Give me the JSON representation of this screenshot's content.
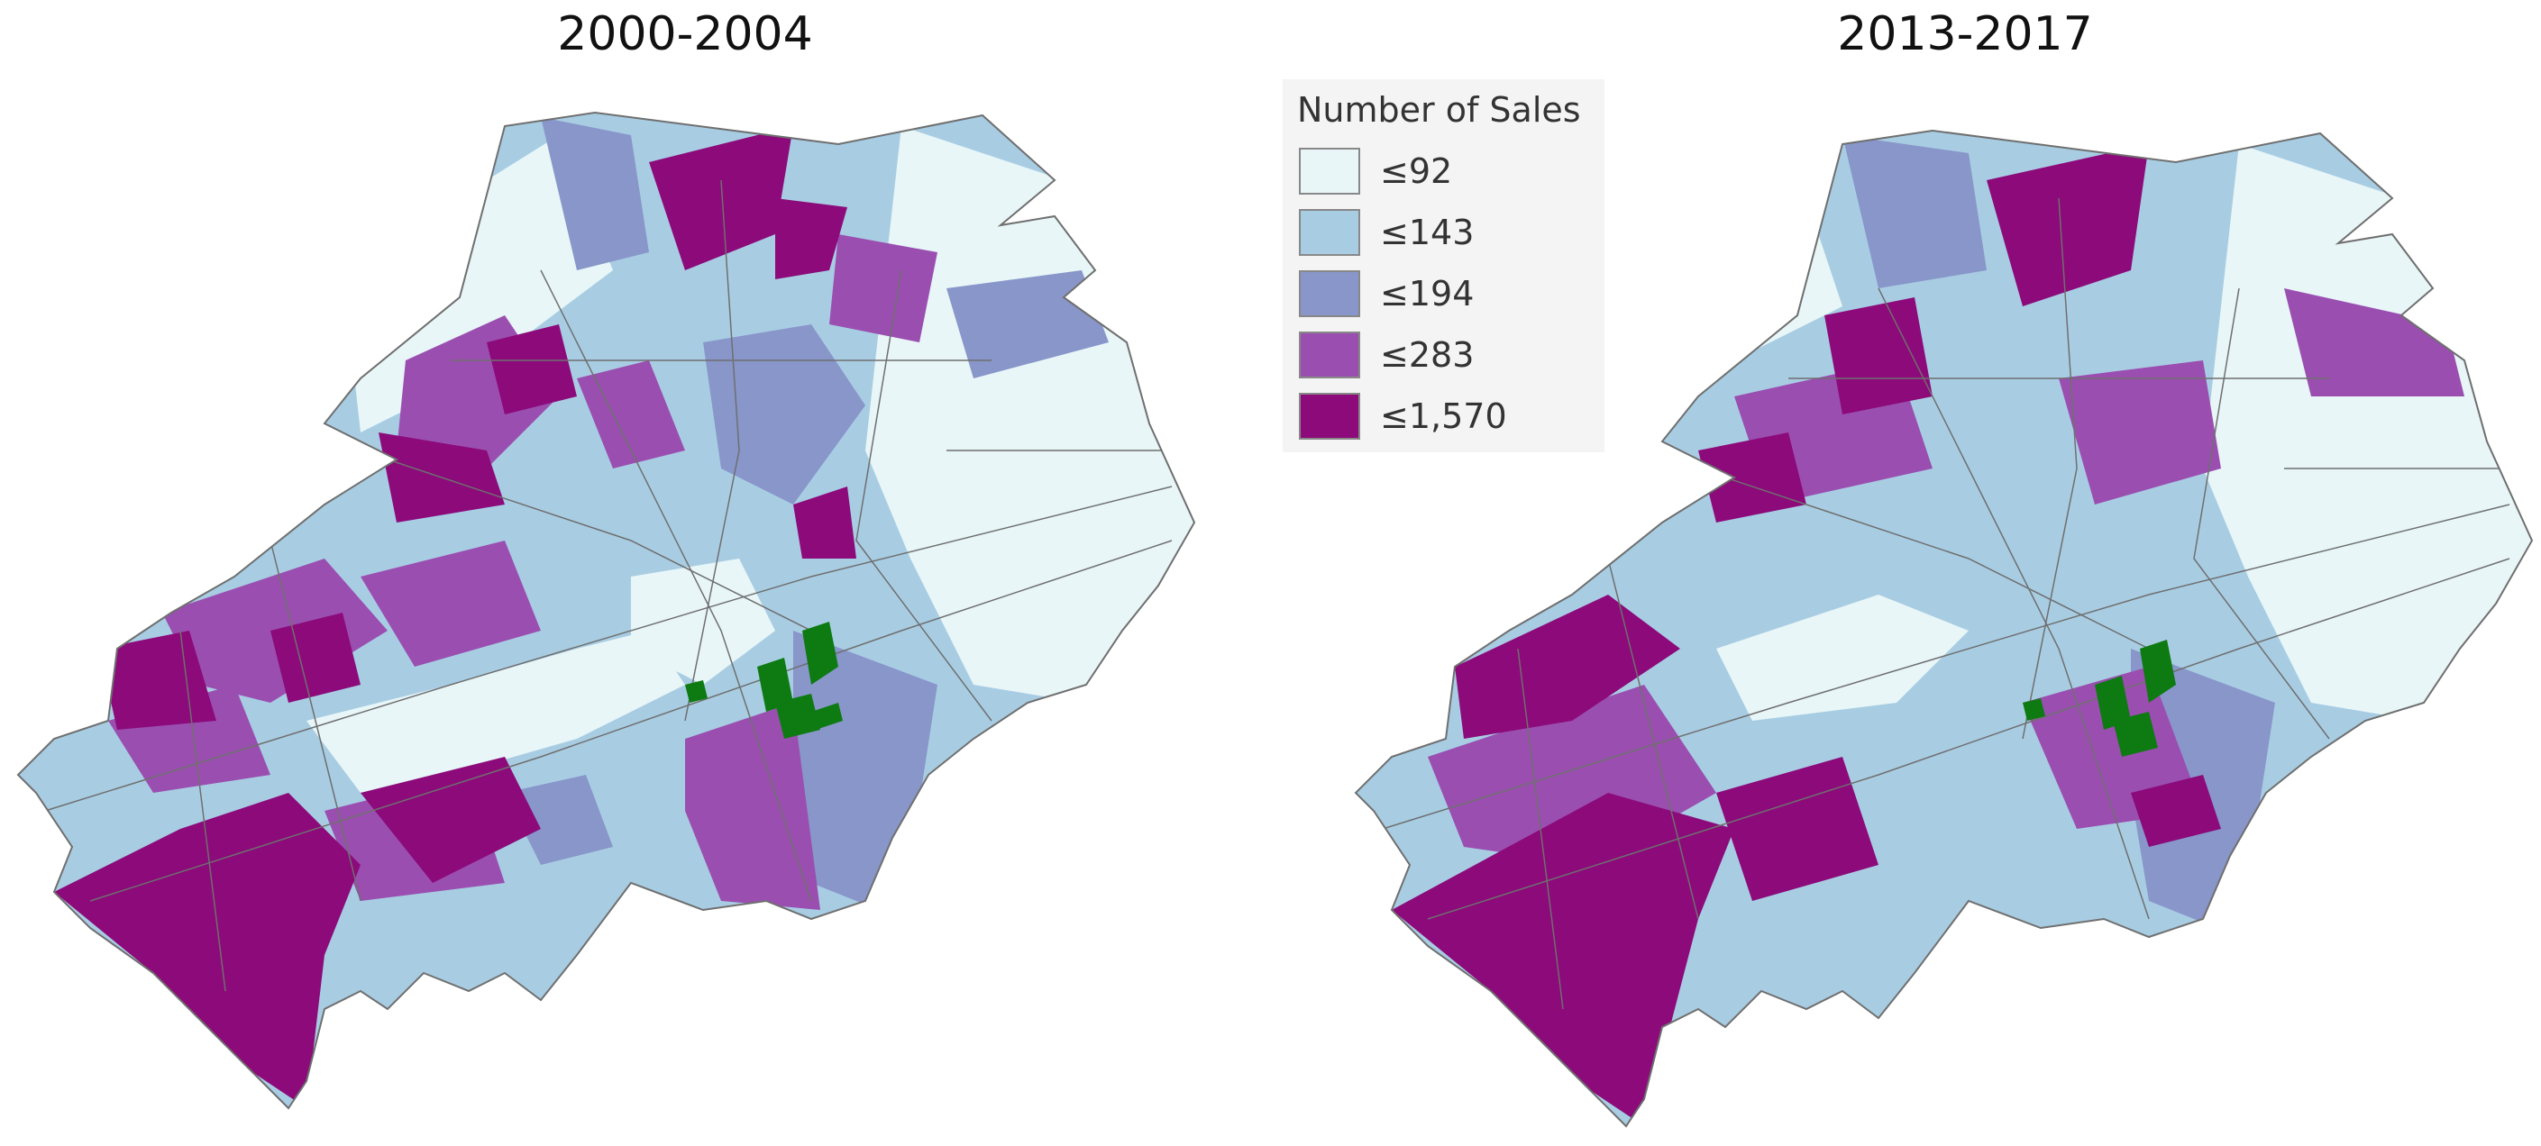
{
  "maps": [
    {
      "title": "2000-2004"
    },
    {
      "title": "2013-2017"
    }
  ],
  "legend": {
    "title": "Number of Sales",
    "classes": [
      {
        "label": "≤92",
        "color": "#e8f6f8"
      },
      {
        "label": "≤143",
        "color": "#a8cde3"
      },
      {
        "label": "≤194",
        "color": "#8896ca"
      },
      {
        "label": "≤283",
        "color": "#9a4fb0"
      },
      {
        "label": "≤1,570",
        "color": "#8c0a7a"
      }
    ]
  },
  "highlight_color": "#0e7a12",
  "boundary_color": "#6f6f6f"
}
